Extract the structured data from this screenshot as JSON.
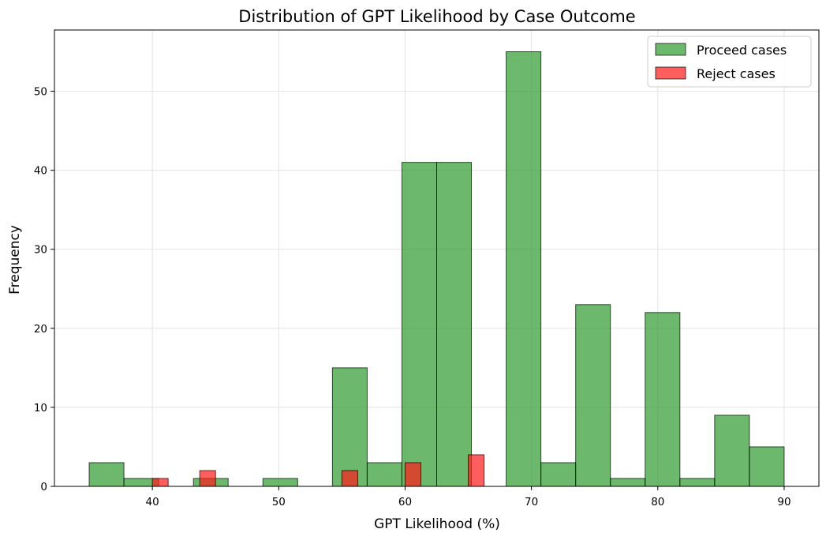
{
  "chart_data": {
    "type": "bar",
    "title": "Distribution of GPT Likelihood by Case Outcome",
    "xlabel": "GPT Likelihood (%)",
    "ylabel": "Frequency",
    "xlim": [
      32.25,
      92.75
    ],
    "ylim": [
      0,
      57.75
    ],
    "xticks": [
      40,
      50,
      60,
      70,
      80,
      90
    ],
    "yticks": [
      0,
      10,
      20,
      30,
      40,
      50
    ],
    "grid": true,
    "legend_position": "top-right",
    "series": [
      {
        "name": "Proceed cases",
        "color": "#2e9a2e",
        "bins": [
          {
            "x0": 35.0,
            "x1": 37.75,
            "count": 3
          },
          {
            "x0": 37.75,
            "x1": 40.5,
            "count": 1
          },
          {
            "x0": 40.5,
            "x1": 43.25,
            "count": 0
          },
          {
            "x0": 43.25,
            "x1": 46.0,
            "count": 1
          },
          {
            "x0": 46.0,
            "x1": 48.75,
            "count": 0
          },
          {
            "x0": 48.75,
            "x1": 51.5,
            "count": 1
          },
          {
            "x0": 51.5,
            "x1": 54.25,
            "count": 0
          },
          {
            "x0": 54.25,
            "x1": 57.0,
            "count": 15
          },
          {
            "x0": 57.0,
            "x1": 59.75,
            "count": 3
          },
          {
            "x0": 59.75,
            "x1": 62.5,
            "count": 41
          },
          {
            "x0": 62.5,
            "x1": 65.25,
            "count": 41
          },
          {
            "x0": 65.25,
            "x1": 68.0,
            "count": 0
          },
          {
            "x0": 68.0,
            "x1": 70.75,
            "count": 55
          },
          {
            "x0": 70.75,
            "x1": 73.5,
            "count": 3
          },
          {
            "x0": 73.5,
            "x1": 76.25,
            "count": 23
          },
          {
            "x0": 76.25,
            "x1": 79.0,
            "count": 1
          },
          {
            "x0": 79.0,
            "x1": 81.75,
            "count": 22
          },
          {
            "x0": 81.75,
            "x1": 84.5,
            "count": 1
          },
          {
            "x0": 84.5,
            "x1": 87.25,
            "count": 9
          },
          {
            "x0": 87.25,
            "x1": 90.0,
            "count": 5
          }
        ]
      },
      {
        "name": "Reject cases",
        "color": "#ff1a1a",
        "bins": [
          {
            "x0": 40.0,
            "x1": 41.25,
            "count": 1
          },
          {
            "x0": 41.25,
            "x1": 42.5,
            "count": 0
          },
          {
            "x0": 42.5,
            "x1": 43.75,
            "count": 0
          },
          {
            "x0": 43.75,
            "x1": 45.0,
            "count": 2
          },
          {
            "x0": 45.0,
            "x1": 46.25,
            "count": 0
          },
          {
            "x0": 46.25,
            "x1": 47.5,
            "count": 0
          },
          {
            "x0": 47.5,
            "x1": 48.75,
            "count": 0
          },
          {
            "x0": 48.75,
            "x1": 50.0,
            "count": 0
          },
          {
            "x0": 50.0,
            "x1": 51.25,
            "count": 0
          },
          {
            "x0": 51.25,
            "x1": 52.5,
            "count": 0
          },
          {
            "x0": 52.5,
            "x1": 53.75,
            "count": 0
          },
          {
            "x0": 53.75,
            "x1": 55.0,
            "count": 0
          },
          {
            "x0": 55.0,
            "x1": 56.25,
            "count": 2
          },
          {
            "x0": 56.25,
            "x1": 57.5,
            "count": 0
          },
          {
            "x0": 57.5,
            "x1": 58.75,
            "count": 0
          },
          {
            "x0": 58.75,
            "x1": 60.0,
            "count": 0
          },
          {
            "x0": 60.0,
            "x1": 61.25,
            "count": 3
          },
          {
            "x0": 61.25,
            "x1": 62.5,
            "count": 0
          },
          {
            "x0": 62.5,
            "x1": 63.75,
            "count": 0
          },
          {
            "x0": 63.75,
            "x1": 65.0,
            "count": 0
          },
          {
            "x0": 65.0,
            "x1": 66.25,
            "count": 4
          }
        ]
      }
    ]
  }
}
